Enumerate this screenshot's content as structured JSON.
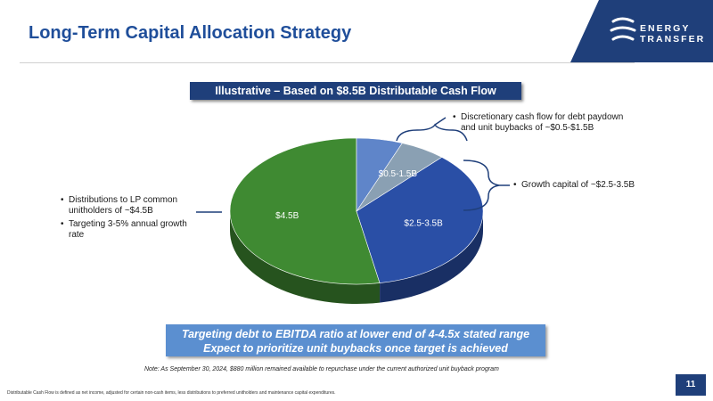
{
  "header": {
    "title": "Long-Term Capital Allocation Strategy",
    "logo_line1": "ENERGY",
    "logo_line2": "TRANSFER"
  },
  "banner": "Illustrative – Based on $8.5B Distributable Cash Flow",
  "chart_data": {
    "type": "pie",
    "title": "Illustrative – Based on $8.5B Distributable Cash Flow",
    "slices": [
      {
        "label": "$4.5B",
        "value": 4.5,
        "color": "#3f8a32"
      },
      {
        "label": "$2.5-3.5B",
        "value": 3.0,
        "color": "#2a4fa6"
      },
      {
        "label": "$0.5-1.5B",
        "value": 0.5,
        "color": "#8aa0b3"
      },
      {
        "label": "",
        "value": 0.5,
        "color": "#5f85c9"
      }
    ]
  },
  "callouts": {
    "left": [
      "Distributions to LP common unitholders of ~$4.5B",
      "Targeting 3-5% annual growth rate"
    ],
    "top_right": "Discretionary cash flow for debt paydown and unit buybacks of ~$0.5-$1.5B",
    "right": "Growth capital of ~$2.5-3.5B"
  },
  "target_box": {
    "line1": "Targeting debt to EBITDA ratio at lower end of 4-4.5x stated range",
    "line2": "Expect to prioritize unit buybacks once target is achieved"
  },
  "note": "Note: As September 30, 2024, $880 million remained available to repurchase under the current authorized unit buyback program",
  "footnote": "Distributable Cash Flow is defined as net income, adjusted for certain non-cash items, less distributions to preferred unitholders and maintenance capital expenditures.",
  "page_number": "11",
  "colors": {
    "title": "#1f4e9a",
    "navy": "#1f3f7a",
    "box": "#5b8fd0"
  }
}
